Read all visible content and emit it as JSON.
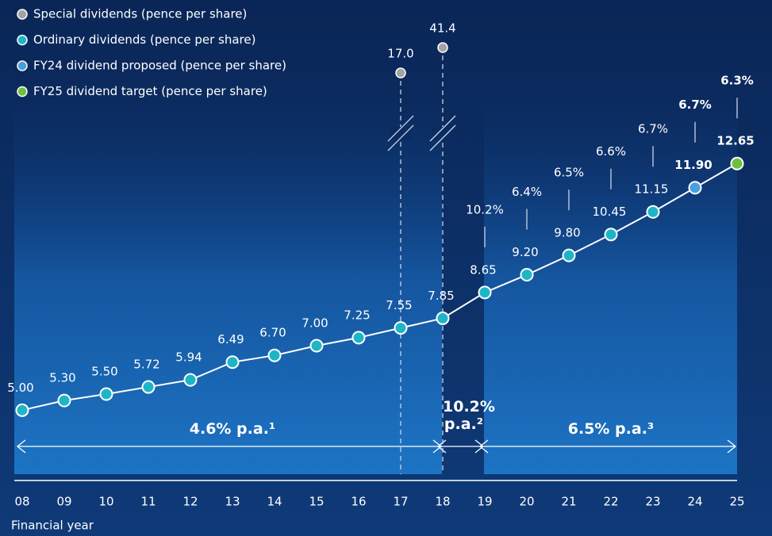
{
  "chart_data": {
    "type": "line",
    "categories": [
      "08",
      "09",
      "10",
      "11",
      "12",
      "13",
      "14",
      "15",
      "16",
      "17",
      "18",
      "19",
      "20",
      "21",
      "22",
      "23",
      "24",
      "25"
    ],
    "x_label": "Financial year",
    "ylim": [
      4,
      13
    ],
    "series": [
      {
        "name": "Special dividends (pence per share)",
        "color": "#a3a3a3",
        "broken_axis": true,
        "values": [
          null,
          null,
          null,
          null,
          null,
          null,
          null,
          null,
          null,
          17.0,
          41.4,
          null,
          null,
          null,
          null,
          null,
          null,
          null
        ],
        "value_labels": [
          null,
          null,
          null,
          null,
          null,
          null,
          null,
          null,
          null,
          "17.0",
          "41.4",
          null,
          null,
          null,
          null,
          null,
          null,
          null
        ]
      },
      {
        "name": "Ordinary dividends (pence per share)",
        "color": "#1fb5c9",
        "values": [
          5.0,
          5.3,
          5.5,
          5.72,
          5.94,
          6.49,
          6.7,
          7.0,
          7.25,
          7.55,
          7.85,
          8.65,
          9.2,
          9.8,
          10.45,
          11.15,
          null,
          null
        ],
        "value_labels": [
          "5.00",
          "5.30",
          "5.50",
          "5.72",
          "5.94",
          "6.49",
          "6.70",
          "7.00",
          "7.25",
          "7.55",
          "7.85",
          "8.65",
          "9.20",
          "9.80",
          "10.45",
          "11.15",
          null,
          null
        ]
      },
      {
        "name": "FY24 dividend proposed (pence per share)",
        "color": "#4a9fe0",
        "bold": true,
        "values": [
          null,
          null,
          null,
          null,
          null,
          null,
          null,
          null,
          null,
          null,
          null,
          null,
          null,
          null,
          null,
          null,
          11.9,
          null
        ],
        "value_labels": [
          null,
          null,
          null,
          null,
          null,
          null,
          null,
          null,
          null,
          null,
          null,
          null,
          null,
          null,
          null,
          null,
          "11.90",
          null
        ]
      },
      {
        "name": "FY25 dividend target (pence per share)",
        "color": "#6dbf3e",
        "bold": true,
        "values": [
          null,
          null,
          null,
          null,
          null,
          null,
          null,
          null,
          null,
          null,
          null,
          null,
          null,
          null,
          null,
          null,
          null,
          12.65
        ],
        "value_labels": [
          null,
          null,
          null,
          null,
          null,
          null,
          null,
          null,
          null,
          null,
          null,
          null,
          null,
          null,
          null,
          null,
          null,
          "12.65"
        ]
      }
    ],
    "growth": {
      "categories": [
        "19",
        "20",
        "21",
        "22",
        "23",
        "24",
        "25"
      ],
      "values": [
        10.2,
        6.4,
        6.5,
        6.6,
        6.7,
        6.7,
        6.3
      ],
      "value_labels": [
        "10.2%",
        "6.4%",
        "6.5%",
        "6.6%",
        "6.7%",
        "6.7%",
        "6.3%"
      ]
    },
    "periods": [
      {
        "label": "4.6% p.a.¹",
        "from": "08",
        "to": "18"
      },
      {
        "label": "10.2% p.a.²",
        "from": "18",
        "to": "19"
      },
      {
        "label": "6.5% p.a.³",
        "from": "19",
        "to": "25"
      }
    ]
  }
}
